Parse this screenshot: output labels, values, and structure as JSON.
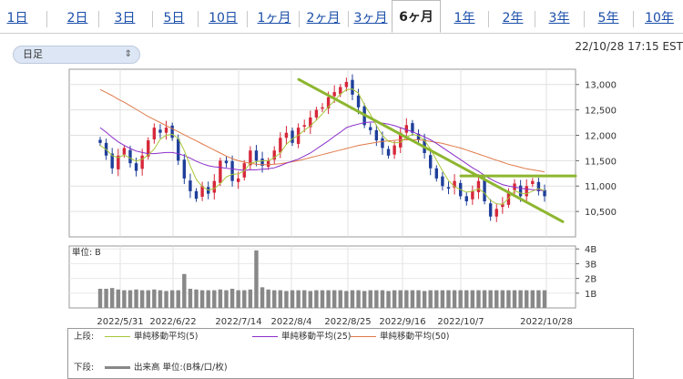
{
  "tabs": [
    {
      "label": "1日",
      "active": false
    },
    {
      "label": "2日",
      "active": false
    },
    {
      "label": "3日",
      "active": false
    },
    {
      "label": "5日",
      "active": false
    },
    {
      "label": "10日",
      "active": false
    },
    {
      "label": "1ヶ月",
      "active": false
    },
    {
      "label": "2ヶ月",
      "active": false
    },
    {
      "label": "3ヶ月",
      "active": false
    },
    {
      "label": "6ヶ月",
      "active": true
    },
    {
      "label": "1年",
      "active": false
    },
    {
      "label": "2年",
      "active": false
    },
    {
      "label": "3年",
      "active": false
    },
    {
      "label": "5年",
      "active": false
    },
    {
      "label": "10年",
      "active": false
    }
  ],
  "period_select": {
    "value": "日足",
    "chevron_icon": "updown-chevron-icon"
  },
  "timestamp": "22/10/28 17:15 EST",
  "colors": {
    "up": "#d6283a",
    "down": "#1f3f9a",
    "sma5": "#a8c63a",
    "sma25": "#8a2fc9",
    "sma50": "#e07a4a",
    "trend": "#8db62f",
    "volume": "#888888"
  },
  "chart_data": [
    {
      "type": "candlestick",
      "x_ticks": [
        "2022/5/31",
        "2022/6/22",
        "2022/7/14",
        "2022/8/4",
        "2022/8/25",
        "2022/9/16",
        "2022/10/7",
        "2022/10/28"
      ],
      "y_ticks": [
        "13,000",
        "12,500",
        "12,000",
        "11,500",
        "11,000",
        "10,500"
      ],
      "ylim": [
        10000,
        13300
      ],
      "close": [
        11850,
        11600,
        11350,
        11600,
        11750,
        11450,
        11300,
        11600,
        11900,
        12150,
        12050,
        12150,
        11950,
        11500,
        11150,
        10900,
        10750,
        11000,
        10850,
        11100,
        11500,
        11450,
        11100,
        11150,
        11450,
        11700,
        11500,
        11400,
        11500,
        11700,
        11950,
        12050,
        11850,
        12150,
        12200,
        12350,
        12500,
        12550,
        12750,
        12850,
        12950,
        13050,
        12800,
        12550,
        12200,
        12100,
        11900,
        11750,
        11600,
        11800,
        12050,
        12200,
        12050,
        11900,
        11650,
        11350,
        11150,
        11000,
        10950,
        11100,
        10800,
        10700,
        10900,
        11100,
        10700,
        10400,
        10550,
        10650,
        10900,
        11050,
        10800,
        11000,
        11100,
        10900,
        10800
      ],
      "sma5": [
        11800,
        11720,
        11600,
        11560,
        11610,
        11550,
        11490,
        11530,
        11610,
        11730,
        11920,
        12000,
        12020,
        11940,
        11700,
        11400,
        11130,
        10990,
        10920,
        10950,
        11050,
        11180,
        11230,
        11240,
        11300,
        11450,
        11480,
        11500,
        11500,
        11560,
        11650,
        11820,
        11930,
        12000,
        12100,
        12180,
        12300,
        12420,
        12560,
        12680,
        12810,
        12900,
        12910,
        12830,
        12600,
        12410,
        12190,
        12000,
        11880,
        11850,
        11860,
        11960,
        12020,
        11990,
        11900,
        11730,
        11510,
        11300,
        11110,
        10990,
        10930,
        10880,
        10900,
        10950,
        10860,
        10720,
        10650,
        10640,
        10760,
        10910,
        10860,
        10850,
        10900,
        10950,
        10910
      ],
      "sma25": [
        12150,
        12060,
        11960,
        11870,
        11800,
        11740,
        11690,
        11660,
        11640,
        11640,
        11650,
        11660,
        11660,
        11640,
        11600,
        11550,
        11490,
        11440,
        11400,
        11380,
        11370,
        11350,
        11340,
        11320,
        11310,
        11320,
        11320,
        11330,
        11340,
        11360,
        11400,
        11450,
        11490,
        11530,
        11590,
        11650,
        11730,
        11810,
        11890,
        11980,
        12060,
        12150,
        12190,
        12220,
        12250,
        12260,
        12260,
        12240,
        12220,
        12190,
        12150,
        12110,
        12070,
        12020,
        11970,
        11910,
        11840,
        11760,
        11680,
        11600,
        11520,
        11440,
        11360,
        11290,
        11210,
        11140,
        11080,
        11030,
        11000,
        10980,
        10960,
        10940,
        10930,
        10920,
        10910
      ],
      "sma50": [
        12900,
        12840,
        12780,
        12710,
        12650,
        12580,
        12510,
        12440,
        12370,
        12310,
        12250,
        12190,
        12130,
        12070,
        12010,
        11950,
        11890,
        11830,
        11770,
        11710,
        11650,
        11590,
        11540,
        11500,
        11470,
        11450,
        11430,
        11420,
        11420,
        11430,
        11440,
        11460,
        11480,
        11500,
        11530,
        11560,
        11590,
        11620,
        11650,
        11680,
        11710,
        11740,
        11770,
        11800,
        11820,
        11840,
        11860,
        11880,
        11890,
        11900,
        11910,
        11910,
        11910,
        11910,
        11900,
        11880,
        11860,
        11840,
        11810,
        11780,
        11750,
        11710,
        11670,
        11630,
        11590,
        11550,
        11510,
        11470,
        11430,
        11400,
        11370,
        11340,
        11320,
        11300,
        11280
      ],
      "trendlines": [
        {
          "from": [
            "2022/8/4",
            13100
          ],
          "to": [
            "2022/10/28",
            10300
          ]
        },
        {
          "from": [
            "2022/10/7",
            11200
          ],
          "to": [
            "2022/10/28",
            11200
          ]
        }
      ],
      "series": [
        {
          "name": "単純移動平均(5)"
        },
        {
          "name": "単純移動平均(25)"
        },
        {
          "name": "単純移動平均(50)"
        }
      ]
    },
    {
      "type": "bar",
      "title": "単位: B",
      "y_ticks": [
        "4B",
        "3B",
        "2B",
        "1B"
      ],
      "ylim": [
        0,
        4.2
      ],
      "values": [
        1.3,
        1.3,
        1.35,
        1.25,
        1.2,
        1.2,
        1.25,
        1.2,
        1.2,
        1.25,
        1.2,
        1.15,
        1.2,
        1.2,
        2.3,
        1.3,
        1.25,
        1.2,
        1.2,
        1.2,
        1.25,
        1.2,
        1.3,
        1.2,
        1.2,
        1.25,
        3.9,
        1.4,
        1.25,
        1.2,
        1.2,
        1.15,
        1.2,
        1.2,
        1.2,
        1.15,
        1.2,
        1.2,
        1.2,
        1.2,
        1.2,
        1.15,
        1.2,
        1.2,
        1.15,
        1.2,
        1.2,
        1.2,
        1.15,
        1.2,
        1.2,
        1.2,
        1.2,
        1.2,
        1.15,
        1.2,
        1.2,
        1.2,
        1.2,
        1.2,
        1.2,
        1.2,
        1.2,
        1.2,
        1.2,
        1.2,
        1.2,
        1.2,
        1.2,
        1.2,
        1.2,
        1.2,
        1.2,
        1.2,
        1.2
      ]
    }
  ],
  "legend": {
    "upper_label": "上段:",
    "lower_label": "下段:",
    "sma5_label": "単純移動平均(5)",
    "sma25_label": "単純移動平均(25)",
    "sma50_label": "単純移動平均(50)",
    "volume_label": "出来高 単位:(B株/口/枚)"
  }
}
